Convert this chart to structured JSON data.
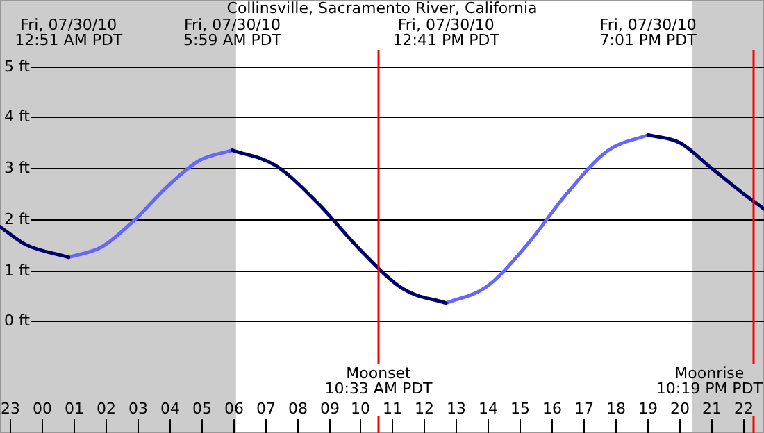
{
  "chart_data": {
    "type": "line",
    "title": "Collinsville, Sacramento River, California",
    "x": [
      "--07-29T22:42",
      "--07-29T23:30",
      "--07-30T00:51",
      "--07-30T01:53",
      "--07-30T02:54",
      "--07-30T03:56",
      "--07-30T04:57",
      "--07-30T05:59",
      "--07-30T07:19",
      "--07-30T08:40",
      "--07-30T10:00",
      "--07-30T11:20",
      "--07-30T12:41",
      "--07-30T13:57",
      "--07-30T15:13",
      "--07-30T16:29",
      "--07-30T17:45",
      "--07-30T19:01",
      "--07-30T20:00",
      "--07-30T21:00",
      "--07-30T22:00",
      "--07-30T22:39"
    ],
    "series": [
      {
        "color": "#000066",
        "values": [
          1.85,
          1.5,
          1.25,
          null,
          null,
          null,
          null,
          3.35,
          3.06,
          2.31,
          1.39,
          0.63,
          0.35,
          null,
          null,
          null,
          null,
          3.65,
          3.5,
          3.0,
          2.5,
          2.2
        ]
      },
      {
        "color": "#6666ff",
        "values": [
          null,
          null,
          1.25,
          1.45,
          1.97,
          2.63,
          3.15,
          3.35,
          null,
          null,
          null,
          null,
          0.35,
          0.67,
          1.49,
          2.51,
          3.34,
          3.65,
          null,
          null,
          null,
          null
        ]
      }
    ],
    "xlim": [
      "--07-29T22:42",
      "--07-30T22:39"
    ],
    "xticks": [
      {
        "value": "--07-29T23:00",
        "label": "23"
      },
      {
        "value": "--07-30T00:00",
        "label": "00"
      },
      {
        "value": "--07-30T01:00",
        "label": "01"
      },
      {
        "value": "--07-30T02:00",
        "label": "02"
      },
      {
        "value": "--07-30T03:00",
        "label": "03"
      },
      {
        "value": "--07-30T04:00",
        "label": "04"
      },
      {
        "value": "--07-30T05:00",
        "label": "05"
      },
      {
        "value": "--07-30T06:00",
        "label": "06"
      },
      {
        "value": "--07-30T07:00",
        "label": "07"
      },
      {
        "value": "--07-30T08:00",
        "label": "08"
      },
      {
        "value": "--07-30T09:00",
        "label": "09"
      },
      {
        "value": "--07-30T10:00",
        "label": "10"
      },
      {
        "value": "--07-30T11:00",
        "label": "11"
      },
      {
        "value": "--07-30T12:00",
        "label": "12"
      },
      {
        "value": "--07-30T13:00",
        "label": "13"
      },
      {
        "value": "--07-30T14:00",
        "label": "14"
      },
      {
        "value": "--07-30T15:00",
        "label": "15"
      },
      {
        "value": "--07-30T16:00",
        "label": "16"
      },
      {
        "value": "--07-30T17:00",
        "label": "17"
      },
      {
        "value": "--07-30T18:00",
        "label": "18"
      },
      {
        "value": "--07-30T19:00",
        "label": "19"
      },
      {
        "value": "--07-30T20:00",
        "label": "20"
      },
      {
        "value": "--07-30T21:00",
        "label": "21"
      },
      {
        "value": "--07-30T22:00",
        "label": "22"
      }
    ],
    "ylim": [
      -2.2,
      6.3
    ],
    "yticks": [
      {
        "value": 0,
        "label": "0 ft"
      },
      {
        "value": 1,
        "label": "1 ft"
      },
      {
        "value": 2,
        "label": "2 ft"
      },
      {
        "value": 3,
        "label": "3 ft"
      },
      {
        "value": 4,
        "label": "4 ft"
      },
      {
        "value": 5,
        "label": "5 ft"
      }
    ],
    "grid": "y",
    "bands": [
      {
        "axis": "x",
        "from": "--07-29T22:42",
        "to": "--07-30T06:06",
        "color": "#cccccc"
      },
      {
        "axis": "x",
        "from": "--07-30T20:24",
        "to": "--07-30T22:39",
        "color": "#cccccc"
      }
    ],
    "ref_lines": [
      {
        "axis": "x",
        "value": "--07-30T10:33",
        "label": "Moonset\n10:33 AM PDT",
        "color": "#ff0000"
      },
      {
        "axis": "x",
        "value": "--07-30T22:19",
        "label": "Moonrise\n10:19 PM PDT",
        "color": "#ff0000"
      }
    ],
    "annotations": [
      "Fri, 07/30/10\n12:51 AM PDT",
      "Fri, 07/30/10\n5:59 AM PDT",
      "Fri, 07/30/10\n12:41 PM PDT",
      "Fri, 07/30/10\n7:01 PM PDT"
    ]
  }
}
